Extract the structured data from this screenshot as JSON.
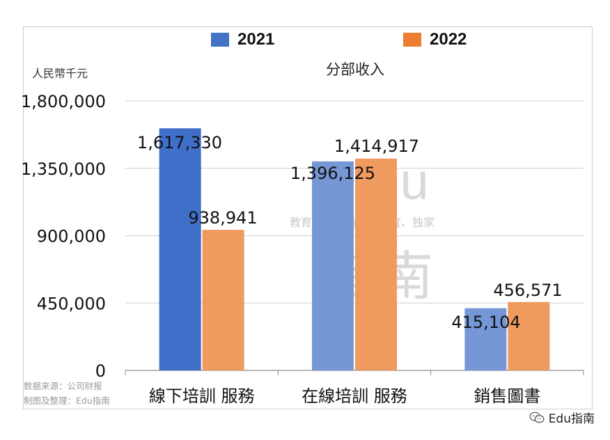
{
  "chart_data": {
    "type": "bar",
    "title": "分部收入",
    "ylabel": "人民幣千元",
    "xlabel": "",
    "categories": [
      "線下培訓 服務",
      "在線培訓 服務",
      "銷售圖書"
    ],
    "series": [
      {
        "name": "2021",
        "values": [
          1617330,
          1396125,
          415104
        ],
        "labels": [
          "1,617,330",
          "1,396,125",
          "415,104"
        ],
        "color": "#4472c4"
      },
      {
        "name": "2022",
        "values": [
          938941,
          1414917,
          456571
        ],
        "labels": [
          "938,941",
          "1,414,917",
          "456,571"
        ],
        "color": "#ed7d31"
      }
    ],
    "ylim": [
      0,
      1800000
    ],
    "yticks": [
      0,
      450000,
      900000,
      1350000,
      1800000
    ],
    "ytick_labels": [
      "0",
      "450,000",
      "900,000",
      "1,350,000",
      "1,800,000"
    ],
    "grid": true,
    "legend_position": "top"
  },
  "source_note": {
    "line1": "数据来源：公司财报",
    "line2": "制图及整理：Edu指南"
  },
  "watermark": {
    "brand": "Edu",
    "slogan": "教育行业，前沿、深度、独家",
    "name": "指南"
  },
  "footer_brand": "Edu指南"
}
